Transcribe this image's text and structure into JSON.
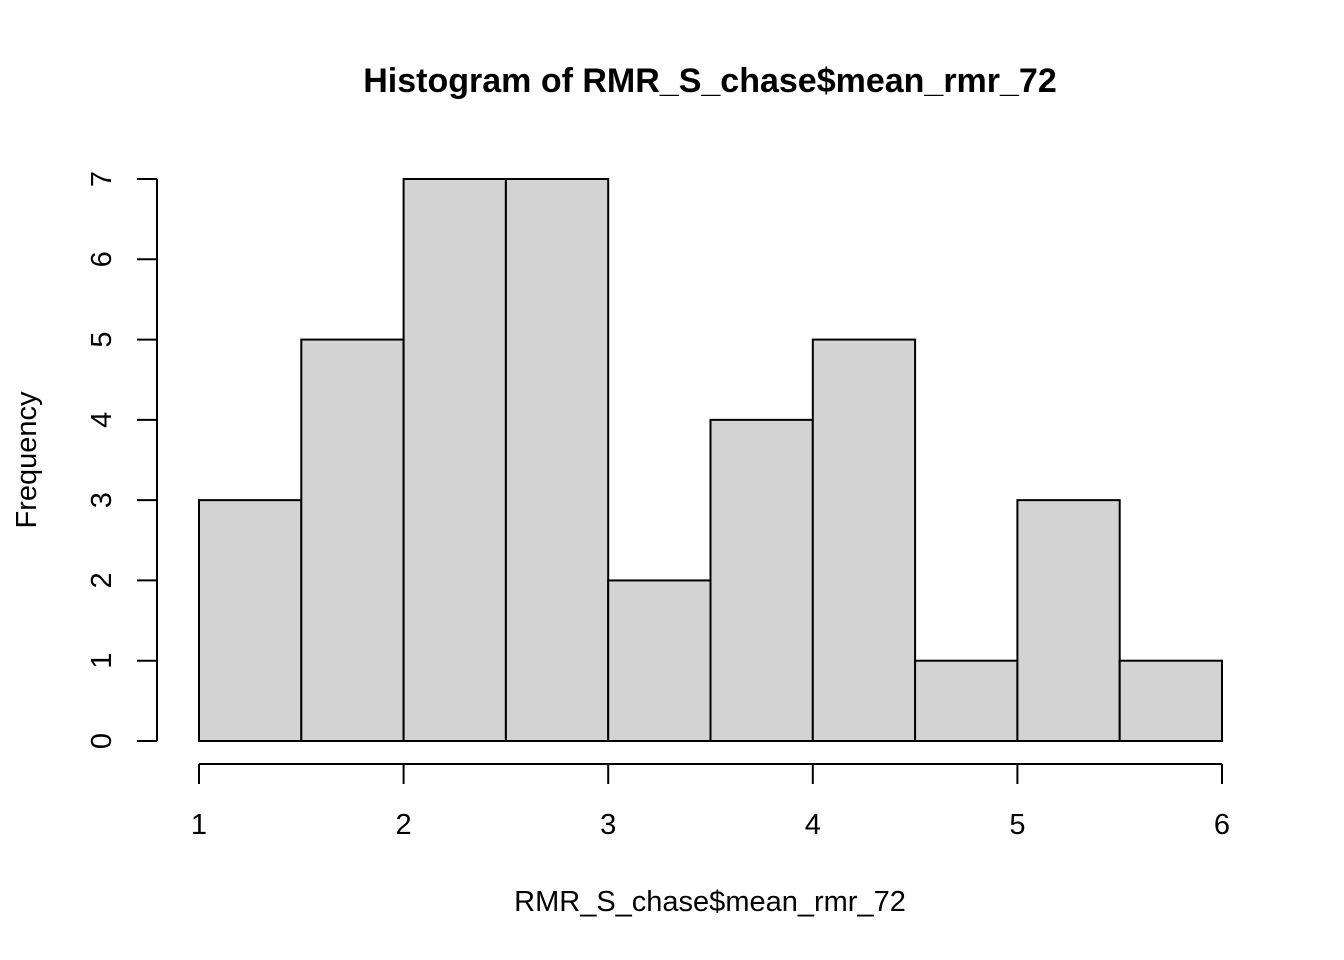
{
  "chart_data": {
    "type": "bar",
    "title": "Histogram of RMR_S_chase$mean_rmr_72",
    "xlabel": "RMR_S_chase$mean_rmr_72",
    "ylabel": "Frequency",
    "bins": [
      {
        "start": 1.0,
        "end": 1.5,
        "count": 3
      },
      {
        "start": 1.5,
        "end": 2.0,
        "count": 5
      },
      {
        "start": 2.0,
        "end": 2.5,
        "count": 7
      },
      {
        "start": 2.5,
        "end": 3.0,
        "count": 7
      },
      {
        "start": 3.0,
        "end": 3.5,
        "count": 2
      },
      {
        "start": 3.5,
        "end": 4.0,
        "count": 4
      },
      {
        "start": 4.0,
        "end": 4.5,
        "count": 5
      },
      {
        "start": 4.5,
        "end": 5.0,
        "count": 1
      },
      {
        "start": 5.0,
        "end": 5.5,
        "count": 3
      },
      {
        "start": 5.5,
        "end": 6.0,
        "count": 1
      }
    ],
    "xlim": [
      1,
      6
    ],
    "ylim": [
      0,
      7
    ],
    "x_ticks": [
      1,
      2,
      3,
      4,
      5,
      6
    ],
    "y_ticks": [
      0,
      1,
      2,
      3,
      4,
      5,
      6,
      7
    ],
    "bar_color": "#d3d3d3",
    "grid": false,
    "legend": "none"
  }
}
